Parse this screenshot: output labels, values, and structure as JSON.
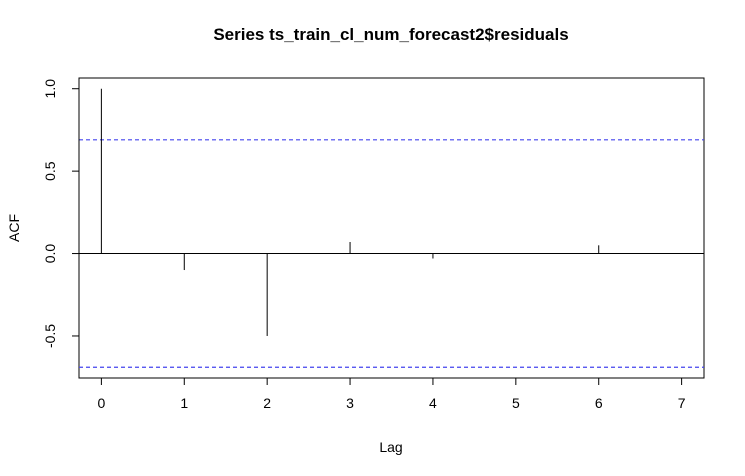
{
  "chart_data": {
    "type": "bar",
    "title": "Series  ts_train_cl_num_forecast2$residuals",
    "xlabel": "Lag",
    "ylabel": "ACF",
    "x": [
      0,
      1,
      2,
      3,
      4,
      5,
      6
    ],
    "values": [
      1.0,
      -0.1,
      -0.5,
      0.07,
      -0.03,
      0.0,
      0.05
    ],
    "xlim": [
      -0.27,
      7.27
    ],
    "ylim": [
      -0.755,
      1.065
    ],
    "xticks": [
      "0",
      "1",
      "2",
      "3",
      "4",
      "5",
      "6",
      "7"
    ],
    "yticks": [
      "-0.5",
      "0.0",
      "0.5",
      "1.0"
    ],
    "confidence_bound": 0.69,
    "confidence_color": "#4444ee",
    "grid": false,
    "legend": "none"
  }
}
